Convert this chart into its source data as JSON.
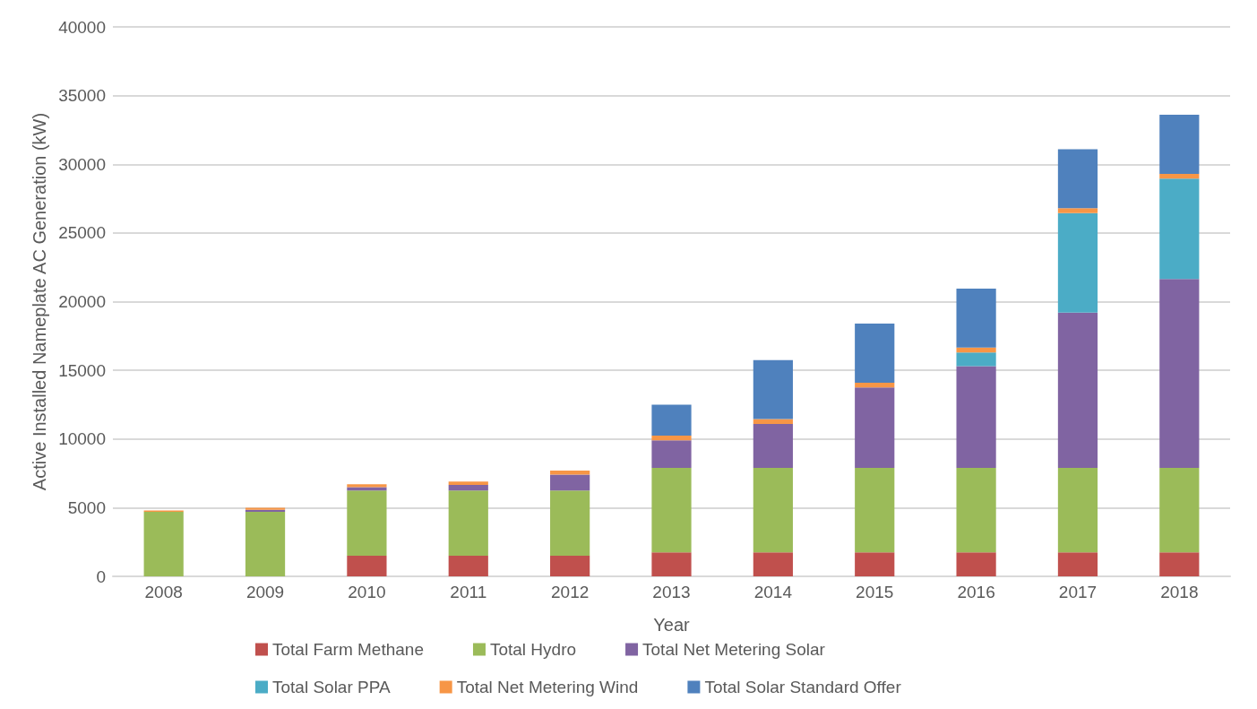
{
  "chart_data": {
    "type": "bar",
    "stacked": true,
    "xlabel": "Year",
    "ylabel": "Active Installed Nameplate AC Generation (kW)",
    "categories": [
      "2008",
      "2009",
      "2010",
      "2011",
      "2012",
      "2013",
      "2014",
      "2015",
      "2016",
      "2017",
      "2018"
    ],
    "series": [
      {
        "name": "Total Farm Methane",
        "color": "#c0504d",
        "values": [
          0,
          0,
          1500,
          1500,
          1500,
          1750,
          1750,
          1750,
          1750,
          1750,
          1750
        ]
      },
      {
        "name": "Total Hydro",
        "color": "#9bbb59",
        "values": [
          4700,
          4700,
          4750,
          4750,
          4750,
          6150,
          6150,
          6150,
          6150,
          6150,
          6150
        ]
      },
      {
        "name": "Total Net Metering Solar",
        "color": "#8064a2",
        "values": [
          0,
          150,
          250,
          400,
          1150,
          2000,
          3200,
          5850,
          7400,
          11300,
          13750
        ]
      },
      {
        "name": "Total Solar PPA",
        "color": "#4bacc6",
        "values": [
          0,
          0,
          0,
          0,
          0,
          0,
          0,
          0,
          1000,
          7250,
          7300
        ]
      },
      {
        "name": "Total Net Metering Wind",
        "color": "#f79646",
        "values": [
          100,
          150,
          200,
          250,
          300,
          350,
          350,
          350,
          350,
          350,
          350
        ]
      },
      {
        "name": "Total Solar Standard Offer",
        "color": "#4f81bd",
        "values": [
          0,
          0,
          0,
          0,
          0,
          2250,
          4300,
          4300,
          4300,
          4300,
          4300
        ]
      }
    ],
    "ylim": [
      0,
      40000
    ],
    "yticks": [
      0,
      5000,
      10000,
      15000,
      20000,
      25000,
      30000,
      35000,
      40000
    ],
    "grid": "y",
    "legend": "bottom"
  }
}
